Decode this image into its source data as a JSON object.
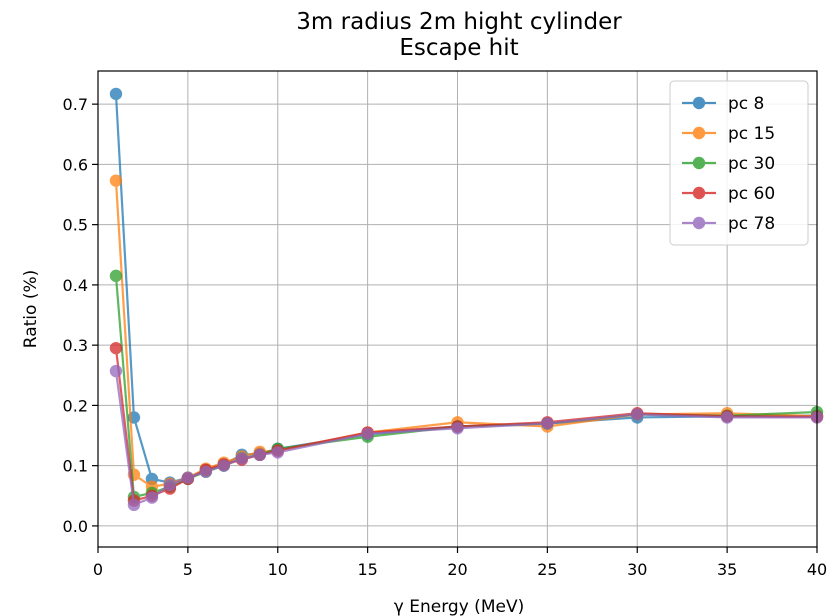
{
  "chart_data": {
    "type": "line",
    "title": "3m radius 2m hight cylinder",
    "subtitle": "Escape hit",
    "xlabel": "γ Energy (MeV)",
    "ylabel": "Ratio (%)",
    "xlim": [
      0,
      40
    ],
    "ylim": [
      -0.035,
      0.755
    ],
    "xticks": [
      0,
      5,
      10,
      15,
      20,
      25,
      30,
      35,
      40
    ],
    "yticks": [
      0.0,
      0.1,
      0.2,
      0.3,
      0.4,
      0.5,
      0.6,
      0.7
    ],
    "grid": true,
    "legend_position": "top-right",
    "x": [
      1,
      2,
      3,
      4,
      5,
      6,
      7,
      8,
      9,
      10,
      15,
      20,
      25,
      30,
      35,
      40
    ],
    "series": [
      {
        "name": "pc 8",
        "color": "#1f77b4",
        "values": [
          0.717,
          0.18,
          0.078,
          0.072,
          0.08,
          0.093,
          0.102,
          0.118,
          0.12,
          0.128,
          0.152,
          0.165,
          0.17,
          0.18,
          0.182,
          0.183
        ]
      },
      {
        "name": "pc 15",
        "color": "#ff7f0e",
        "values": [
          0.573,
          0.085,
          0.065,
          0.07,
          0.08,
          0.095,
          0.105,
          0.115,
          0.123,
          0.125,
          0.155,
          0.172,
          0.165,
          0.185,
          0.187,
          0.182
        ]
      },
      {
        "name": "pc 30",
        "color": "#2ca02c",
        "values": [
          0.415,
          0.048,
          0.055,
          0.065,
          0.078,
          0.09,
          0.1,
          0.112,
          0.118,
          0.128,
          0.148,
          0.165,
          0.17,
          0.185,
          0.183,
          0.189
        ]
      },
      {
        "name": "pc 60",
        "color": "#d62728",
        "values": [
          0.295,
          0.042,
          0.05,
          0.062,
          0.078,
          0.093,
          0.102,
          0.11,
          0.118,
          0.125,
          0.155,
          0.165,
          0.172,
          0.187,
          0.182,
          0.181
        ]
      },
      {
        "name": "pc 78",
        "color": "#9467bd",
        "values": [
          0.257,
          0.035,
          0.047,
          0.068,
          0.08,
          0.09,
          0.1,
          0.112,
          0.118,
          0.122,
          0.153,
          0.162,
          0.17,
          0.185,
          0.18,
          0.18
        ]
      }
    ]
  }
}
